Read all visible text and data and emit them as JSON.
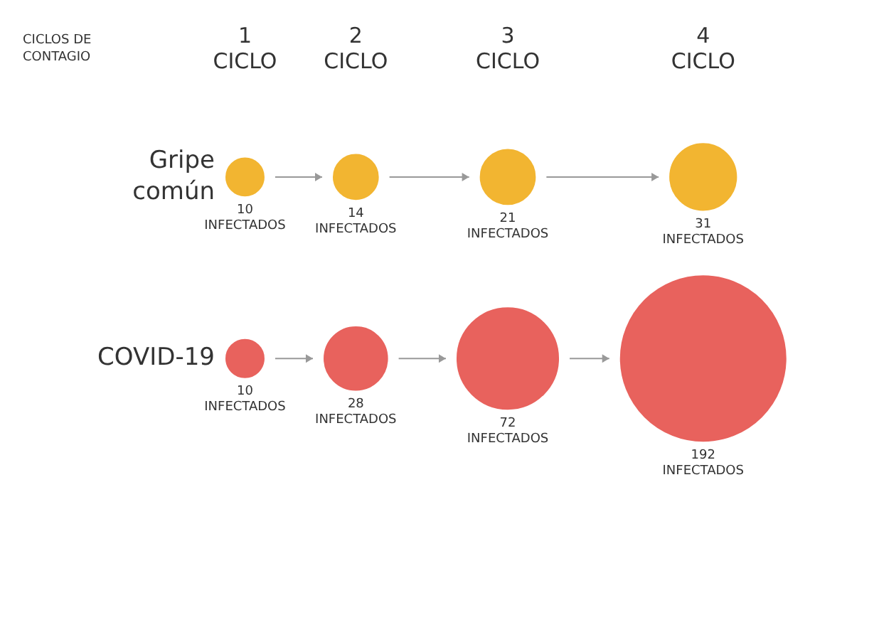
{
  "chart_data": {
    "type": "other",
    "xlabel": "CICLOS DE\nCONTAGIO",
    "categories": [
      "1\nCICLO",
      "2\nCICLO",
      "3\nCICLO",
      "4\nCICLO"
    ],
    "series": [
      {
        "name": "Gripe\ncomún",
        "color": "#f2b531",
        "values": [
          10,
          14,
          21,
          31
        ],
        "value_labels": [
          "10\nINFECTADOS",
          "14\nINFECTADOS",
          "21\nINFECTADOS",
          "31\nINFECTADOS"
        ]
      },
      {
        "name": "COVID-19",
        "color": "#e8625d",
        "values": [
          10,
          28,
          72,
          192
        ],
        "value_labels": [
          "10\nINFECTADOS",
          "28\nINFECTADOS",
          "72\nINFECTADOS",
          "192\nINFECTADOS"
        ]
      }
    ]
  }
}
